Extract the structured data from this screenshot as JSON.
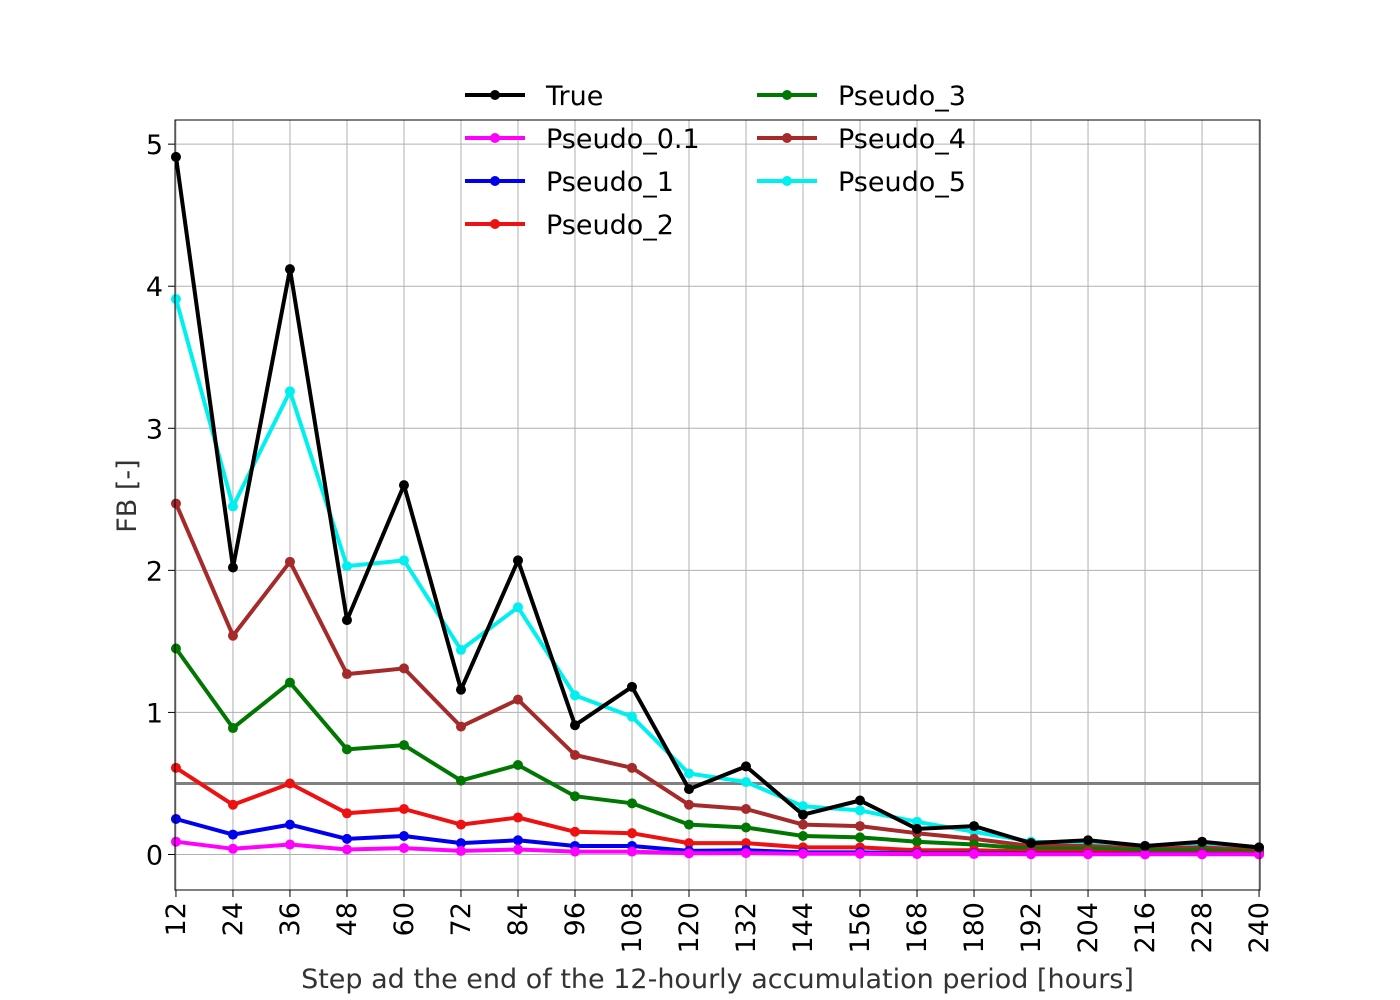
{
  "chart_data": {
    "type": "line",
    "title": "",
    "xlabel": "Step ad the end of the 12-hourly accumulation period [hours]",
    "ylabel": "FB [-]",
    "x": [
      12,
      24,
      36,
      48,
      60,
      72,
      84,
      96,
      108,
      120,
      132,
      144,
      156,
      168,
      180,
      192,
      204,
      216,
      228,
      240
    ],
    "x_tick_labels": [
      "12",
      "24",
      "36",
      "48",
      "60",
      "72",
      "84",
      "96",
      "108",
      "120",
      "132",
      "144",
      "156",
      "168",
      "180",
      "192",
      "204",
      "216",
      "228",
      "240"
    ],
    "y_ticks": [
      0,
      1,
      2,
      3,
      4,
      5
    ],
    "y_tick_labels": [
      "0",
      "1",
      "2",
      "3",
      "4",
      "5"
    ],
    "xlim": [
      11.8,
      240.2
    ],
    "ylim": [
      -0.25,
      5.17
    ],
    "grid": true,
    "legend_placement": "top-center",
    "reference_line": {
      "y": 0.5,
      "color": "#808080"
    },
    "series": [
      {
        "name": "True",
        "color": "#000000",
        "values": [
          4.91,
          2.02,
          4.12,
          1.65,
          2.6,
          1.16,
          2.07,
          0.91,
          1.18,
          0.46,
          0.62,
          0.28,
          0.38,
          0.18,
          0.2,
          0.08,
          0.1,
          0.06,
          0.09,
          0.05
        ]
      },
      {
        "name": "Pseudo_0.1",
        "color": "#ff00ff",
        "values": [
          0.09,
          0.04,
          0.07,
          0.035,
          0.045,
          0.025,
          0.035,
          0.02,
          0.02,
          0.008,
          0.01,
          0.005,
          0.005,
          0.003,
          0.003,
          0.002,
          0.002,
          0.001,
          0.001,
          0.001
        ]
      },
      {
        "name": "Pseudo_1",
        "color": "#0000ee",
        "values": [
          0.25,
          0.14,
          0.21,
          0.11,
          0.13,
          0.08,
          0.1,
          0.06,
          0.06,
          0.025,
          0.03,
          0.015,
          0.015,
          0.008,
          0.008,
          0.005,
          0.005,
          0.004,
          0.004,
          0.003
        ]
      },
      {
        "name": "Pseudo_2",
        "color": "#ee1111",
        "values": [
          0.61,
          0.35,
          0.5,
          0.29,
          0.32,
          0.21,
          0.26,
          0.16,
          0.15,
          0.08,
          0.08,
          0.05,
          0.05,
          0.03,
          0.03,
          0.02,
          0.02,
          0.01,
          0.01,
          0.008
        ]
      },
      {
        "name": "Pseudo_3",
        "color": "#007700",
        "values": [
          1.45,
          0.89,
          1.21,
          0.74,
          0.77,
          0.52,
          0.63,
          0.41,
          0.36,
          0.21,
          0.19,
          0.13,
          0.12,
          0.09,
          0.07,
          0.04,
          0.04,
          0.03,
          0.03,
          0.02
        ]
      },
      {
        "name": "Pseudo_4",
        "color": "#a52a2a",
        "values": [
          2.47,
          1.54,
          2.06,
          1.27,
          1.31,
          0.9,
          1.09,
          0.7,
          0.61,
          0.35,
          0.32,
          0.21,
          0.2,
          0.15,
          0.11,
          0.06,
          0.06,
          0.04,
          0.05,
          0.03
        ]
      },
      {
        "name": "Pseudo_5",
        "color": "#00f0f0",
        "values": [
          3.91,
          2.45,
          3.26,
          2.03,
          2.07,
          1.44,
          1.74,
          1.12,
          0.97,
          0.57,
          0.51,
          0.34,
          0.31,
          0.23,
          0.16,
          0.09,
          0.08,
          0.06,
          0.08,
          0.05
        ]
      }
    ]
  }
}
